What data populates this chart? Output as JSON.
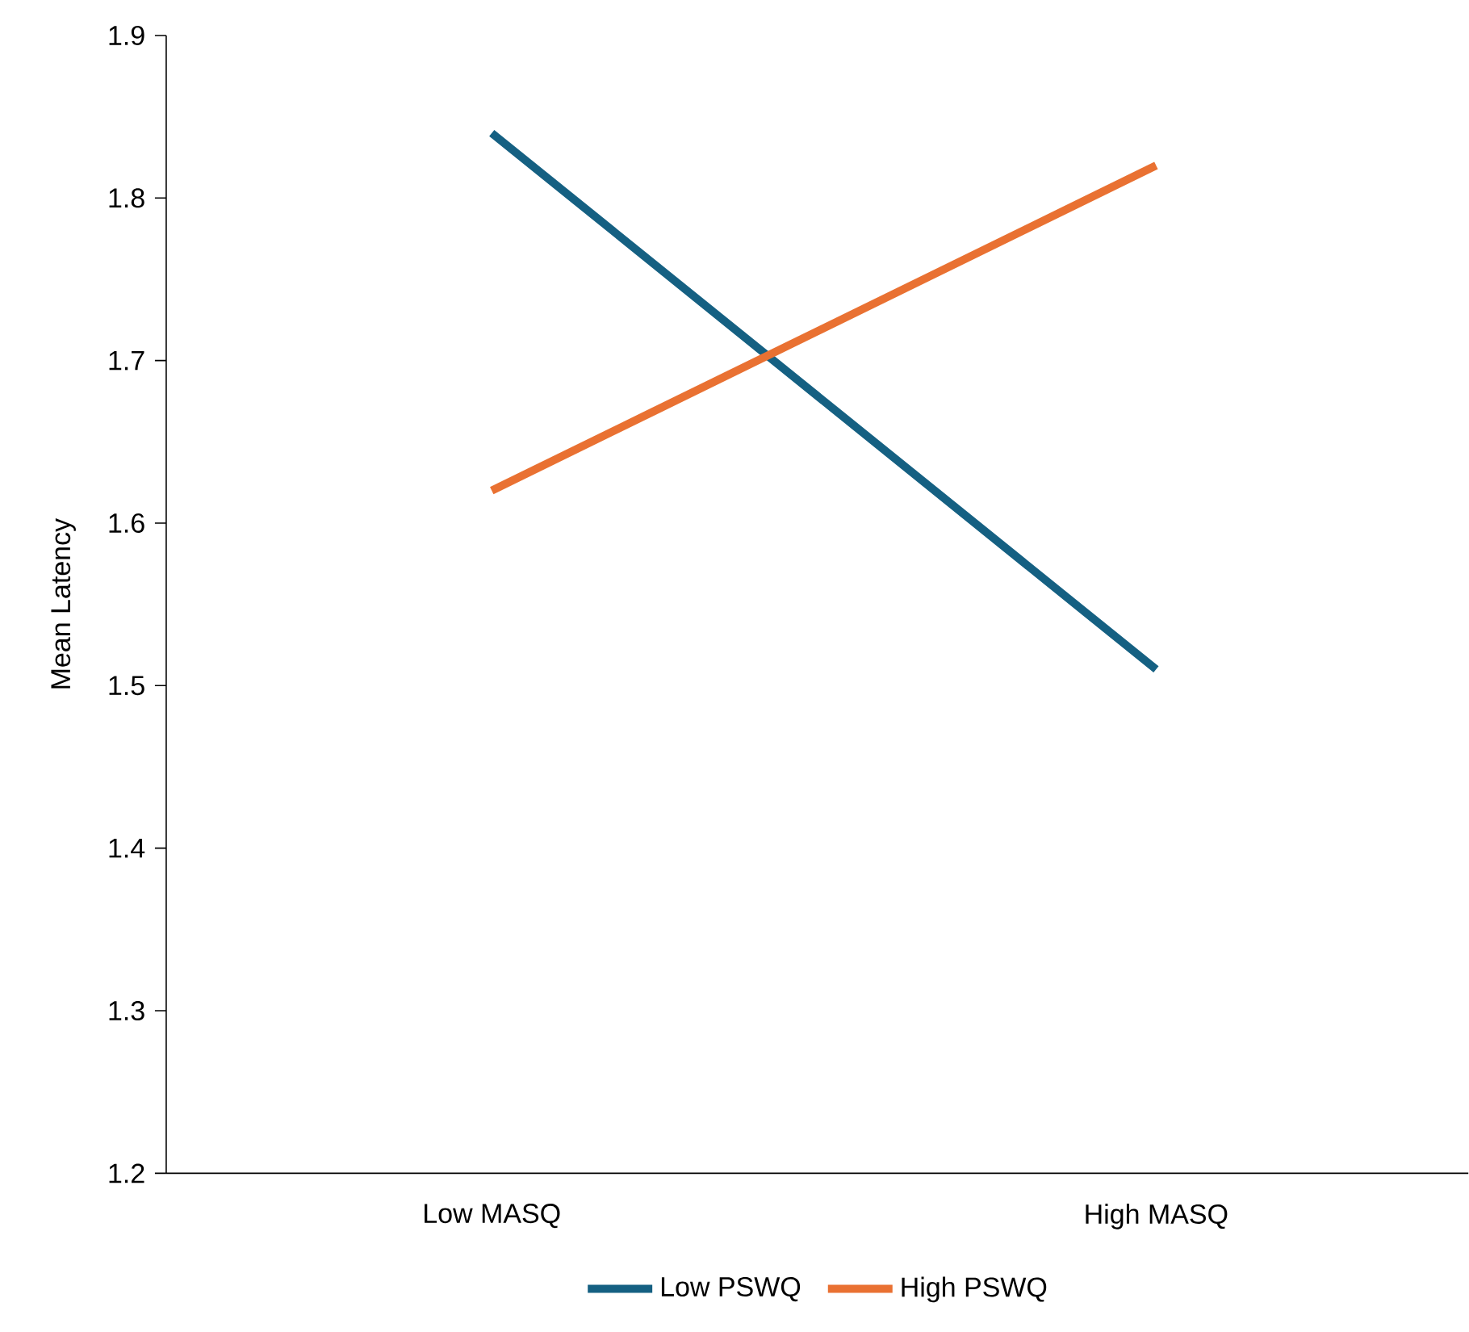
{
  "chart_data": {
    "type": "line",
    "ylabel": "Mean Latency",
    "categories": [
      "Low MASQ",
      "High MASQ"
    ],
    "series": [
      {
        "name": "Low PSWQ",
        "color": "#156082",
        "values": [
          1.84,
          1.51
        ]
      },
      {
        "name": "High PSWQ",
        "color": "#e97132",
        "values": [
          1.62,
          1.82
        ]
      }
    ],
    "ylim": [
      1.2,
      1.9
    ],
    "yticks": [
      1.2,
      1.3,
      1.4,
      1.5,
      1.6,
      1.7,
      1.8,
      1.9
    ],
    "grid": false,
    "legend": "bottom",
    "marker": "none",
    "line_style": "solid"
  }
}
